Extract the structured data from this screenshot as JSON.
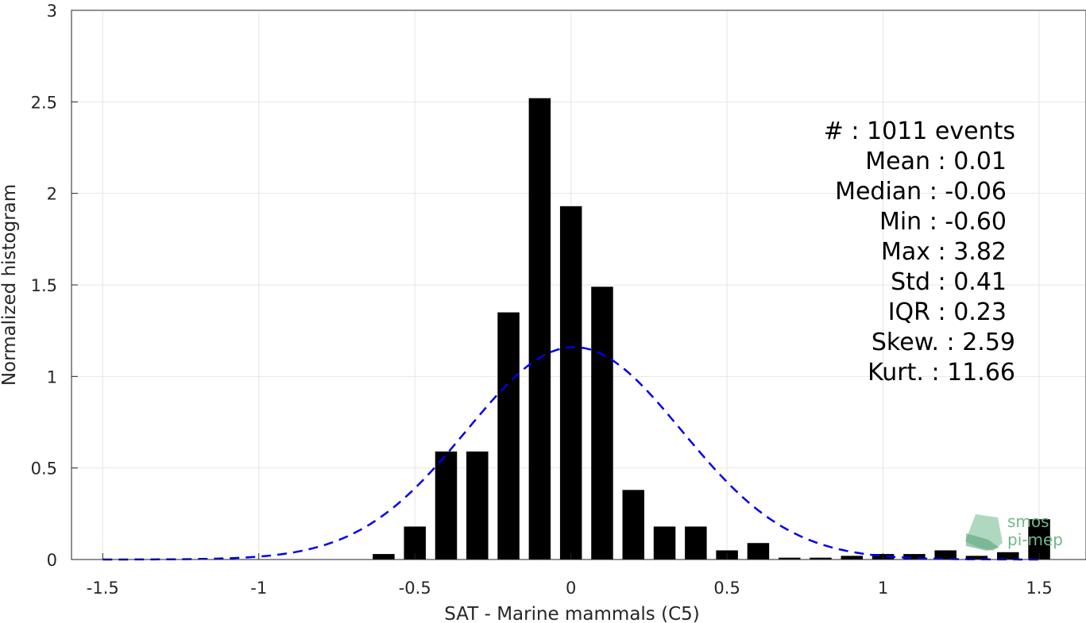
{
  "chart_data": {
    "type": "bar",
    "xlabel": "SAT - Marine mammals (C5)",
    "ylabel": "Normalized histogram",
    "xlim": [
      -1.6,
      1.65
    ],
    "ylim": [
      0,
      3
    ],
    "xticks": [
      -1.5,
      -1,
      -0.5,
      0,
      0.5,
      1,
      1.5
    ],
    "xtick_labels": [
      "-1.5",
      "-1",
      "-0.5",
      "0",
      "0.5",
      "1",
      "1.5"
    ],
    "yticks": [
      0,
      0.5,
      1,
      1.5,
      2,
      2.5,
      3
    ],
    "ytick_labels": [
      "0",
      "0.5",
      "1",
      "1.5",
      "2",
      "2.5",
      "3"
    ],
    "grid": true,
    "bar_width": 0.07,
    "bar_color": "#000000",
    "bars": {
      "x": [
        -0.6,
        -0.5,
        -0.4,
        -0.3,
        -0.2,
        -0.1,
        0.0,
        0.1,
        0.2,
        0.3,
        0.4,
        0.5,
        0.6,
        0.7,
        0.8,
        0.9,
        1.0,
        1.1,
        1.2,
        1.3,
        1.4,
        1.5
      ],
      "values": [
        0.03,
        0.18,
        0.59,
        0.59,
        1.35,
        2.52,
        1.93,
        1.49,
        0.38,
        0.18,
        0.18,
        0.05,
        0.09,
        0.01,
        0.01,
        0.02,
        0.03,
        0.03,
        0.05,
        0.02,
        0.04,
        0.22
      ]
    },
    "fit_curve": {
      "style": "dashed",
      "color": "#0000ee",
      "mean": 0.01,
      "std": 0.345,
      "peak": 1.16,
      "x_range": [
        -1.5,
        1.5
      ]
    },
    "annotations": [
      {
        "label": "#  : 1011 events",
        "align": "end-wide"
      },
      {
        "label": "Mean : 0.01",
        "align": "end"
      },
      {
        "label": "Median : -0.06",
        "align": "end"
      },
      {
        "label": "Min : -0.60",
        "align": "end"
      },
      {
        "label": "Max : 3.82",
        "align": "end"
      },
      {
        "label": "Std : 0.41",
        "align": "end"
      },
      {
        "label": "IQR : 0.23",
        "align": "end"
      },
      {
        "label": "Skew. : 2.59",
        "align": "end-wide"
      },
      {
        "label": "Kurt. : 11.66",
        "align": "end-wide"
      }
    ]
  },
  "watermark": {
    "line1": "smos",
    "line2": "pi-mep",
    "color": "#6fb88c"
  }
}
